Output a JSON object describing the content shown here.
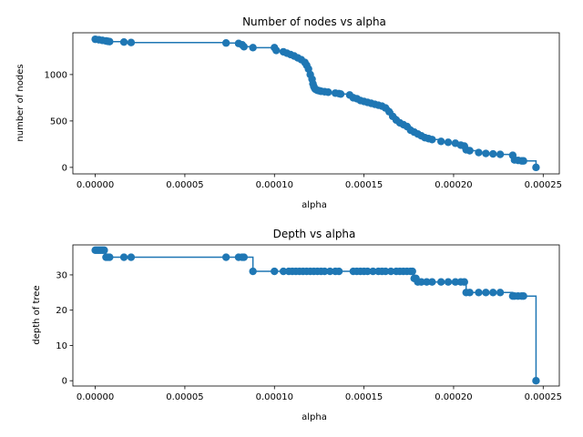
{
  "chart_data": [
    {
      "type": "scatter",
      "title": "Number of nodes vs alpha",
      "xlabel": "alpha",
      "ylabel": "number of nodes",
      "xlim": [
        -1.25e-05,
        0.000259
      ],
      "ylim": [
        -70,
        1450
      ],
      "xticks": [
        0,
        5e-05,
        0.0001,
        0.00015,
        0.0002,
        0.00025
      ],
      "xtick_labels": [
        "0.00000",
        "0.00005",
        "0.00010",
        "0.00015",
        "0.00020",
        "0.00025"
      ],
      "yticks": [
        0,
        500,
        1000
      ],
      "ytick_labels": [
        "0",
        "500",
        "1000"
      ],
      "grid": false,
      "drawstyle": "steps-post",
      "color": "#1f77b4",
      "series": [
        {
          "x": [
            0,
            2e-06,
            4e-06,
            6e-06,
            7e-06,
            8e-06,
            1.6e-05,
            2e-05,
            7.3e-05,
            8e-05,
            8.2e-05,
            8.3e-05,
            8.8e-05,
            0.0001,
            0.000101,
            0.000105,
            0.000107,
            0.000109,
            0.000111,
            0.000113,
            0.000115,
            0.000117,
            0.000118,
            0.000119,
            0.00012,
            0.000121,
            0.0001215,
            0.000122,
            0.0001225,
            0.000123,
            0.000124,
            0.000125,
            0.000126,
            0.000128,
            0.00013,
            0.000134,
            0.000136,
            0.000137,
            0.000142,
            0.000144,
            0.000146,
            0.000148,
            0.00015,
            0.000152,
            0.000154,
            0.000156,
            0.000158,
            0.00016,
            0.000162,
            0.000164,
            0.000166,
            0.000168,
            0.00017,
            0.000172,
            0.000174,
            0.000176,
            0.000178,
            0.00018,
            0.000182,
            0.000184,
            0.000186,
            0.000188,
            0.000193,
            0.000197,
            0.000201,
            0.000204,
            0.000206,
            0.000207,
            0.000209,
            0.000214,
            0.000218,
            0.000222,
            0.000226,
            0.000233,
            0.000234,
            0.000236,
            0.000238,
            0.000239,
            0.000246
          ],
          "y": [
            1380,
            1375,
            1368,
            1362,
            1358,
            1355,
            1350,
            1345,
            1340,
            1335,
            1320,
            1300,
            1290,
            1290,
            1260,
            1245,
            1230,
            1215,
            1200,
            1180,
            1160,
            1130,
            1100,
            1060,
            1000,
            950,
            900,
            870,
            850,
            840,
            830,
            825,
            820,
            815,
            810,
            800,
            795,
            790,
            780,
            750,
            740,
            720,
            710,
            700,
            690,
            680,
            670,
            660,
            640,
            600,
            550,
            510,
            480,
            460,
            440,
            400,
            380,
            360,
            340,
            320,
            310,
            300,
            280,
            270,
            260,
            240,
            230,
            190,
            180,
            160,
            150,
            145,
            140,
            130,
            80,
            75,
            70,
            70,
            0
          ]
        }
      ]
    },
    {
      "type": "scatter",
      "title": "Depth vs alpha",
      "xlabel": "alpha",
      "ylabel": "depth of tree",
      "xlim": [
        -1.25e-05,
        0.000259
      ],
      "ylim": [
        -1.5,
        38.5
      ],
      "xticks": [
        0,
        5e-05,
        0.0001,
        0.00015,
        0.0002,
        0.00025
      ],
      "xtick_labels": [
        "0.00000",
        "0.00005",
        "0.00010",
        "0.00015",
        "0.00020",
        "0.00025"
      ],
      "yticks": [
        0,
        10,
        20,
        30
      ],
      "ytick_labels": [
        "0",
        "10",
        "20",
        "30"
      ],
      "grid": false,
      "drawstyle": "steps-post",
      "color": "#1f77b4",
      "series": [
        {
          "x": [
            0,
            1e-06,
            2e-06,
            3e-06,
            4e-06,
            5e-06,
            6e-06,
            7e-06,
            8e-06,
            1.6e-05,
            2e-05,
            7.3e-05,
            8e-05,
            8.2e-05,
            8.3e-05,
            8.8e-05,
            0.0001,
            0.000105,
            0.000108,
            0.00011,
            0.000112,
            0.000114,
            0.000116,
            0.000118,
            0.00012,
            0.000122,
            0.000124,
            0.000126,
            0.000128,
            0.000131,
            0.000134,
            0.000136,
            0.000144,
            0.000146,
            0.000148,
            0.00015,
            0.000152,
            0.000155,
            0.000158,
            0.00016,
            0.000162,
            0.000165,
            0.000168,
            0.00017,
            0.000172,
            0.000174,
            0.000176,
            0.000177,
            0.000178,
            0.000179,
            0.00018,
            0.000182,
            0.000185,
            0.000188,
            0.000193,
            0.000197,
            0.000201,
            0.000204,
            0.000206,
            0.000207,
            0.000209,
            0.000214,
            0.000218,
            0.000222,
            0.000226,
            0.000233,
            0.000234,
            0.000236,
            0.000238,
            0.000239,
            0.000246
          ],
          "y": [
            37,
            37,
            37,
            37,
            37,
            37,
            35,
            35,
            35,
            35,
            35,
            35,
            35,
            35,
            35,
            31,
            31,
            31,
            31,
            31,
            31,
            31,
            31,
            31,
            31,
            31,
            31,
            31,
            31,
            31,
            31,
            31,
            31,
            31,
            31,
            31,
            31,
            31,
            31,
            31,
            31,
            31,
            31,
            31,
            31,
            31,
            31,
            31,
            29,
            29,
            28,
            28,
            28,
            28,
            28,
            28,
            28,
            28,
            28,
            25,
            25,
            25,
            25,
            25,
            25,
            24,
            24,
            24,
            24,
            24,
            0
          ]
        }
      ]
    }
  ]
}
